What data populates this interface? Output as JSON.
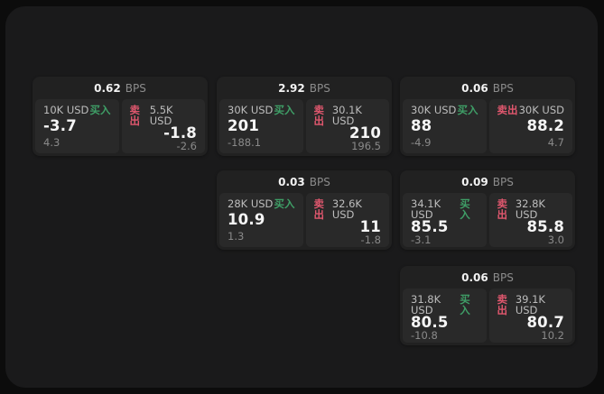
{
  "labels": {
    "bps": "BPS",
    "buy": "买入",
    "sell": "卖出"
  },
  "colors": {
    "page_bg": "#0c0c0c",
    "panel_bg": "#1a1a1b",
    "card_bg": "#212121",
    "tile_bg": "#292929",
    "buy_green": "#3f9f67",
    "sell_red": "#e0576e"
  },
  "cards": [
    {
      "bps": "0.62",
      "buy": {
        "amount": "10K USD",
        "price": "-3.7",
        "delta": "4.3"
      },
      "sell": {
        "amount": "5.5K USD",
        "price": "-1.8",
        "delta": "-2.6"
      }
    },
    {
      "bps": "2.92",
      "buy": {
        "amount": "30K USD",
        "price": "201",
        "delta": "-188.1"
      },
      "sell": {
        "amount": "30.1K USD",
        "price": "210",
        "delta": "196.5"
      }
    },
    {
      "bps": "0.06",
      "buy": {
        "amount": "30K USD",
        "price": "88",
        "delta": "-4.9"
      },
      "sell": {
        "amount": "30K USD",
        "price": "88.2",
        "delta": "4.7"
      }
    },
    {
      "bps": "0.03",
      "buy": {
        "amount": "28K USD",
        "price": "10.9",
        "delta": "1.3"
      },
      "sell": {
        "amount": "32.6K USD",
        "price": "11",
        "delta": "-1.8"
      }
    },
    {
      "bps": "0.09",
      "buy": {
        "amount": "34.1K USD",
        "price": "85.5",
        "delta": "-3.1"
      },
      "sell": {
        "amount": "32.8K USD",
        "price": "85.8",
        "delta": "3.0"
      }
    },
    {
      "bps": "0.06",
      "buy": {
        "amount": "31.8K USD",
        "price": "80.5",
        "delta": "-10.8"
      },
      "sell": {
        "amount": "39.1K USD",
        "price": "80.7",
        "delta": "10.2"
      }
    }
  ]
}
